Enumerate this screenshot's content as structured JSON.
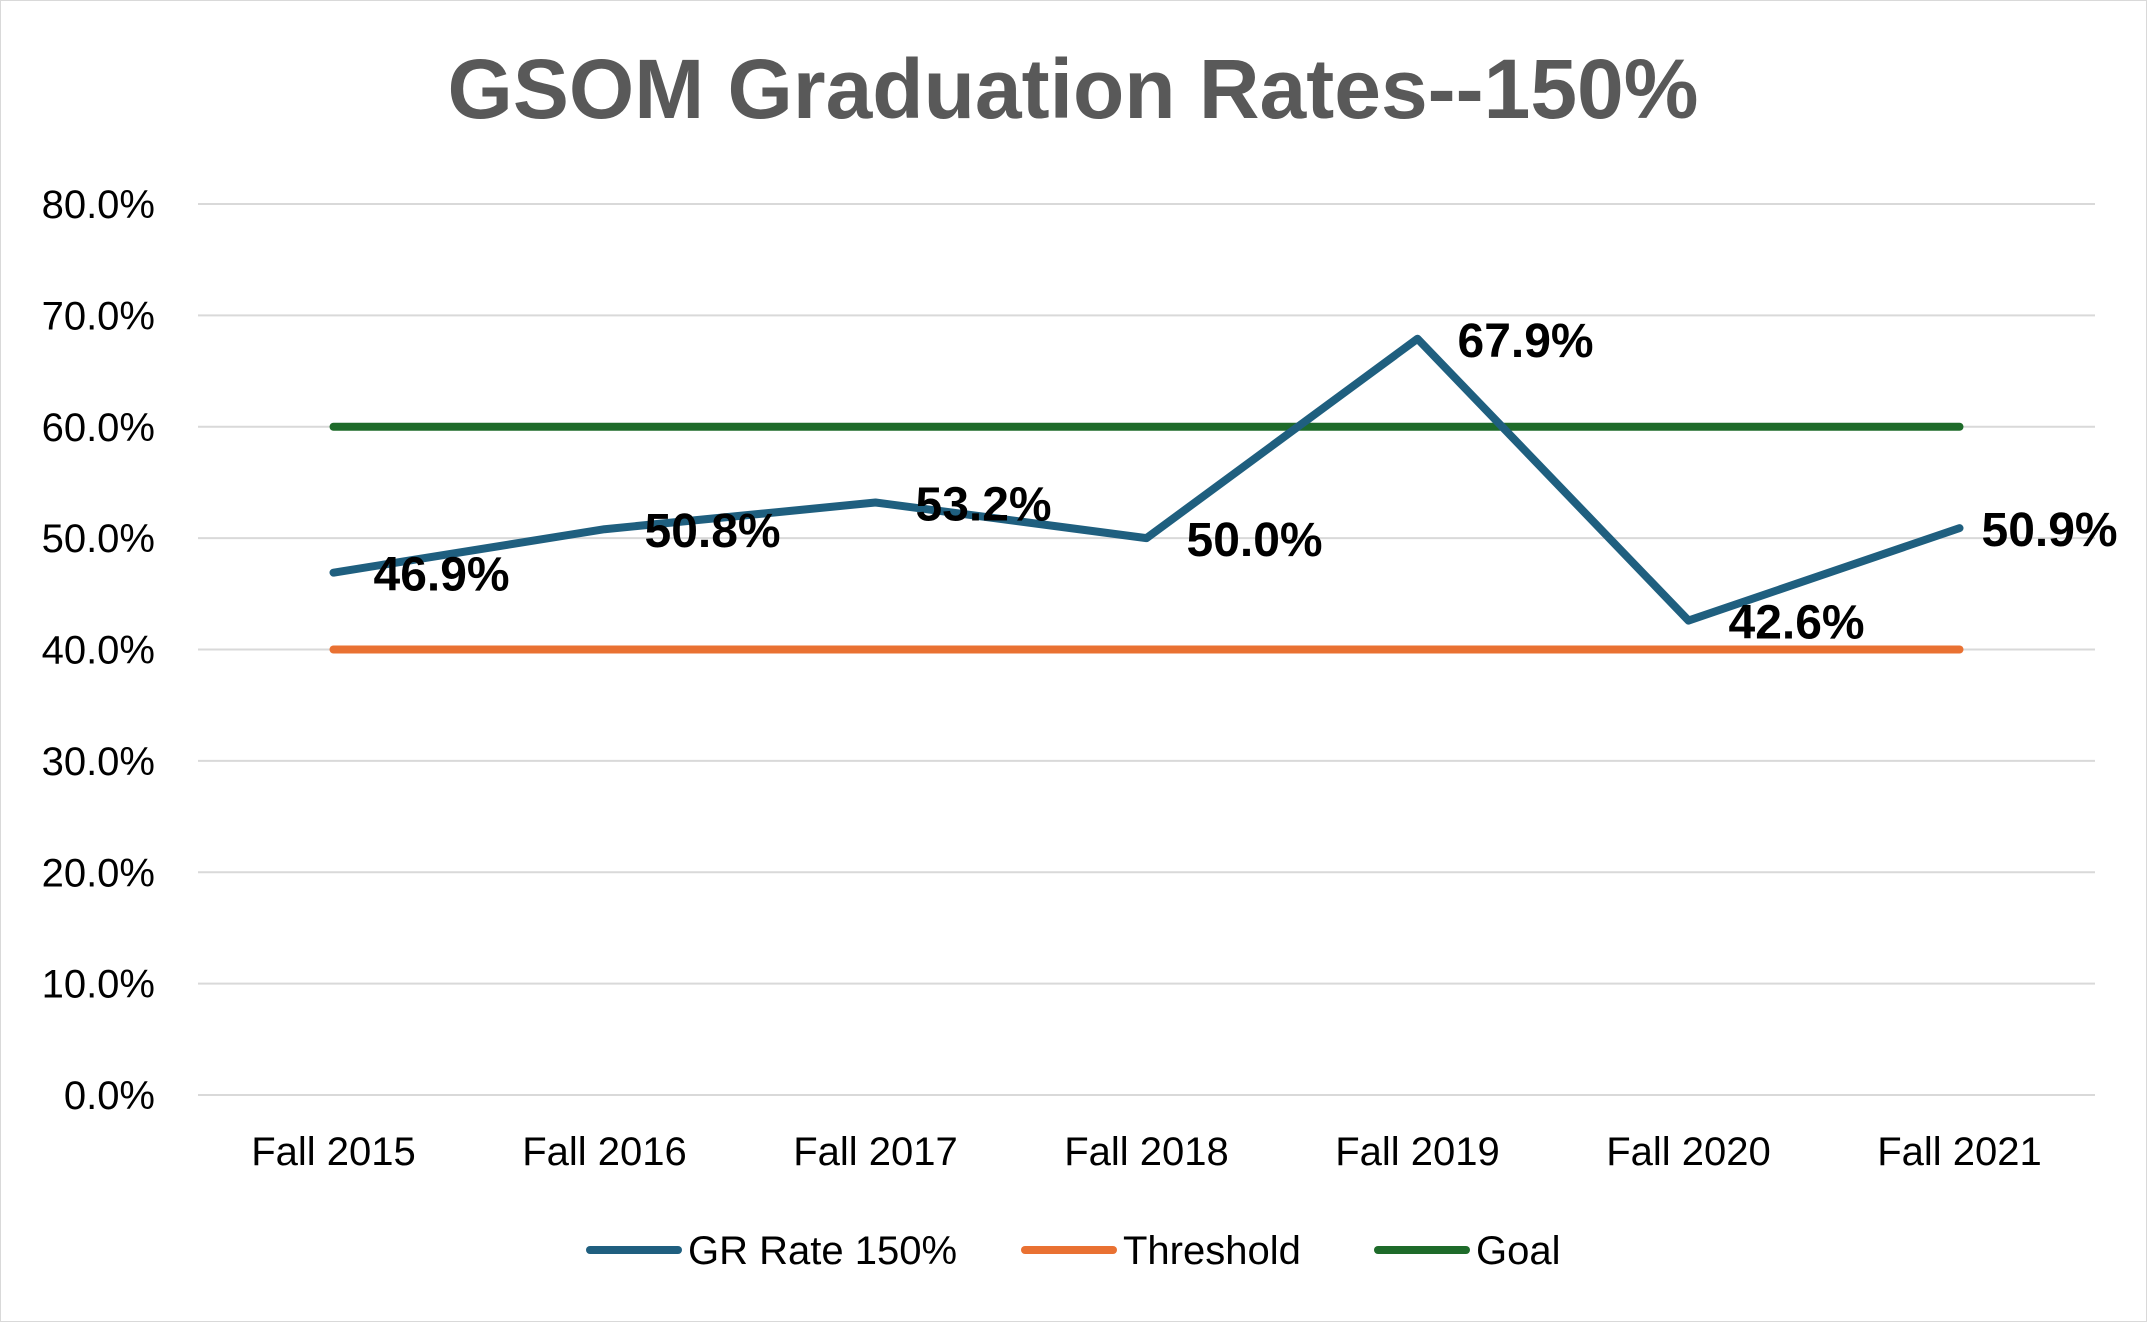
{
  "chart_data": {
    "type": "line",
    "title": "GSOM Graduation Rates--150%",
    "categories": [
      "Fall 2015",
      "Fall 2016",
      "Fall 2017",
      "Fall 2018",
      "Fall 2019",
      "Fall 2020",
      "Fall 2021"
    ],
    "ylim": [
      0,
      80
    ],
    "yticks": [
      "0.0%",
      "10.0%",
      "20.0%",
      "30.0%",
      "40.0%",
      "50.0%",
      "60.0%",
      "70.0%",
      "80.0%"
    ],
    "grid": true,
    "legend_position": "bottom",
    "series": [
      {
        "name": "GR Rate 150%",
        "color": "#1f5f7f",
        "values": [
          46.9,
          50.8,
          53.2,
          50.0,
          67.9,
          42.6,
          50.9
        ],
        "data_labels": [
          "46.9%",
          "50.8%",
          "53.2%",
          "50.0%",
          "67.9%",
          "42.6%",
          "50.9%"
        ]
      },
      {
        "name": "Threshold",
        "color": "#e97132",
        "values": [
          40,
          40,
          40,
          40,
          40,
          40,
          40
        ]
      },
      {
        "name": "Goal",
        "color": "#1e6b2a",
        "values": [
          60,
          60,
          60,
          60,
          60,
          60,
          60
        ]
      }
    ]
  }
}
